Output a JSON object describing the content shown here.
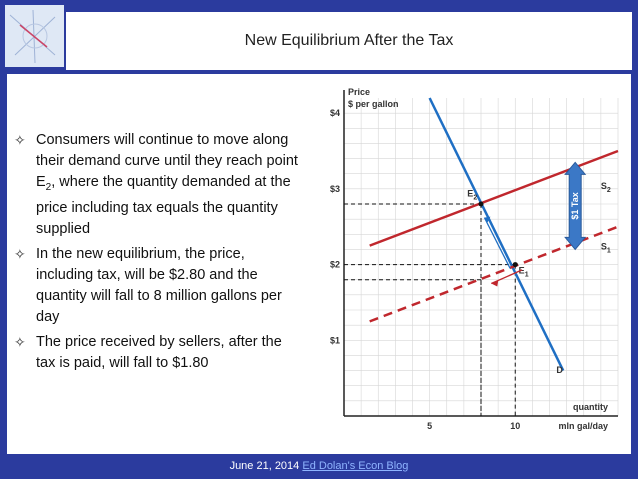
{
  "slide": {
    "title": "New Equilibrium After the Tax",
    "footer_date": "June 21, 2014",
    "footer_link": "Ed Dolan's Econ Blog"
  },
  "bullets": [
    {
      "icon": "diamond-bullet-icon",
      "text_pre": "Consumers will continue to move along their demand curve until they reach point E",
      "sub": "2",
      "text_post": ", where the quantity demanded at the price including tax equals the quantity supplied"
    },
    {
      "icon": "diamond-bullet-icon",
      "text_pre": "In the new equilibrium, the price, including tax, will be $2.80 and the quantity will fall to 8 million gallons per day",
      "sub": "",
      "text_post": ""
    },
    {
      "icon": "diamond-bullet-icon",
      "text_pre": "The price received by sellers, after the tax is paid, will fall to $1.80",
      "sub": "",
      "text_post": ""
    }
  ],
  "chart_data": {
    "type": "line",
    "ylabel_line1": "Price",
    "ylabel_line2": "$ per gallon",
    "xlabel_line1": "quantity",
    "xlabel_line2": "mln gal/day",
    "y_ticks": [
      "$4",
      "$3",
      "$2",
      "$1"
    ],
    "y_tick_values": [
      4,
      3,
      2,
      1
    ],
    "x_ticks": [
      "5",
      "10"
    ],
    "x_tick_values": [
      5,
      10
    ],
    "xlim": [
      0,
      16
    ],
    "ylim": [
      0,
      4.2
    ],
    "series": [
      {
        "name": "D",
        "color": "#1f6fc4",
        "style": "solid",
        "points": [
          [
            5,
            4.2
          ],
          [
            12.8,
            0.6
          ]
        ]
      },
      {
        "name": "S2",
        "color": "#c0272d",
        "style": "solid",
        "points": [
          [
            1.5,
            2.25
          ],
          [
            16,
            3.5
          ]
        ]
      },
      {
        "name": "S1",
        "color": "#c0272d",
        "style": "dashed",
        "points": [
          [
            1.5,
            1.25
          ],
          [
            16,
            2.5
          ]
        ]
      }
    ],
    "points": [
      {
        "name": "E2",
        "x": 8,
        "y": 2.8
      },
      {
        "name": "E1",
        "x": 10,
        "y": 2.0
      }
    ],
    "annotations": {
      "tax_label": "$1 Tax",
      "d_label": "D",
      "s1_label": "S",
      "s1_sub": "1",
      "s2_label": "S",
      "s2_sub": "2",
      "e1_label": "E",
      "e1_sub": "1",
      "e2_label": "E",
      "e2_sub": "2"
    },
    "reference_lines": [
      {
        "y": 2.8,
        "x": 8
      },
      {
        "y": 2.0,
        "x": 10
      },
      {
        "y": 1.8,
        "x": 8
      }
    ],
    "colors": {
      "demand": "#1f6fc4",
      "supply": "#c0272d",
      "tax_arrow": "#3b78c6",
      "grid": "#d6d6d6"
    }
  }
}
